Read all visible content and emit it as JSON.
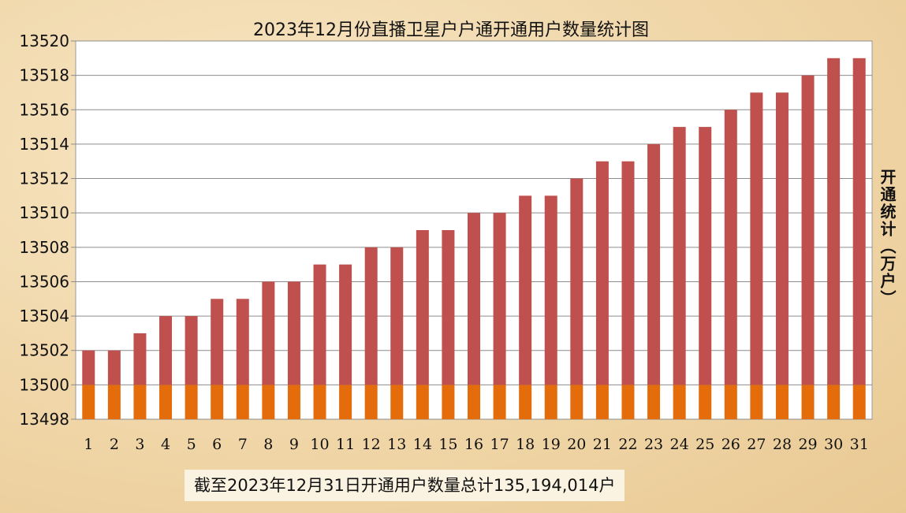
{
  "chart_data": {
    "type": "bar",
    "stacked": true,
    "title": "2023年12月份直播卫星户户通开通用户数量统计图",
    "ylabel": "开通统计（万户）",
    "xlabel": "",
    "ylim": [
      13498,
      13520
    ],
    "ytick_step": 2,
    "grid": true,
    "categories": [
      "1",
      "2",
      "3",
      "4",
      "5",
      "6",
      "7",
      "8",
      "9",
      "10",
      "11",
      "12",
      "13",
      "14",
      "15",
      "16",
      "17",
      "18",
      "19",
      "20",
      "21",
      "22",
      "23",
      "24",
      "25",
      "26",
      "27",
      "28",
      "29",
      "30",
      "31"
    ],
    "values": [
      13502,
      13502,
      13503,
      13504,
      13504,
      13505,
      13505,
      13506,
      13506,
      13507,
      13507,
      13508,
      13508,
      13509,
      13509,
      13510,
      13510,
      13511,
      13511,
      13512,
      13513,
      13513,
      13514,
      13515,
      13515,
      13516,
      13517,
      13517,
      13518,
      13519,
      13519
    ],
    "base_segment_top": 13500,
    "colors": {
      "base": "#e46c0a",
      "top": "#c0504d"
    }
  },
  "footer": {
    "note": "截至2023年12月31日开通用户数量总计135,194,014户"
  }
}
